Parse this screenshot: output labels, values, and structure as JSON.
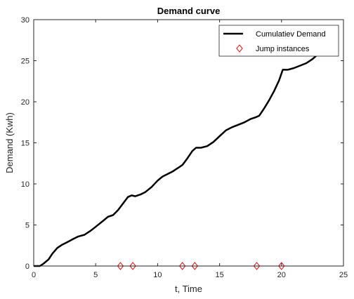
{
  "chart_data": {
    "type": "line",
    "title": "Demand curve",
    "xlabel": "t, Time",
    "ylabel": "Demand (Kwh)",
    "xlim": [
      0,
      25
    ],
    "ylim": [
      0,
      30
    ],
    "xticks": [
      0,
      5,
      10,
      15,
      20,
      25
    ],
    "yticks": [
      0,
      5,
      10,
      15,
      20,
      25,
      30
    ],
    "grid": false,
    "legend_position": "top-right",
    "series": [
      {
        "name": "Cumulatiev Demand",
        "kind": "line",
        "color": "#000000",
        "x": [
          0,
          0.5,
          0.8,
          1.2,
          1.5,
          1.9,
          2.3,
          2.7,
          3.2,
          3.6,
          4.1,
          4.6,
          5.1,
          5.6,
          6.0,
          6.4,
          6.8,
          7.2,
          7.6,
          7.9,
          8.2,
          8.6,
          9.0,
          9.5,
          10.0,
          10.4,
          10.8,
          11.2,
          11.6,
          12.0,
          12.4,
          12.8,
          13.1,
          13.5,
          14.0,
          14.5,
          15.0,
          15.5,
          16.0,
          16.5,
          17.0,
          17.5,
          17.9,
          18.2,
          18.6,
          19.0,
          19.4,
          19.8,
          20.1,
          20.5,
          21.0,
          21.5,
          22.0,
          22.5,
          22.8
        ],
        "y": [
          0,
          0,
          0.3,
          0.8,
          1.5,
          2.2,
          2.6,
          2.9,
          3.3,
          3.6,
          3.8,
          4.3,
          4.9,
          5.5,
          6.0,
          6.2,
          6.8,
          7.6,
          8.4,
          8.6,
          8.5,
          8.7,
          9.0,
          9.6,
          10.4,
          10.9,
          11.2,
          11.5,
          11.9,
          12.3,
          13.1,
          14.0,
          14.4,
          14.4,
          14.6,
          15.1,
          15.8,
          16.5,
          16.9,
          17.2,
          17.5,
          17.9,
          18.1,
          18.3,
          19.2,
          20.2,
          21.3,
          22.6,
          23.9,
          23.9,
          24.1,
          24.4,
          24.7,
          25.2,
          25.6
        ]
      },
      {
        "name": "Jump instances",
        "kind": "marker",
        "marker": "diamond",
        "color": "#e00000",
        "x": [
          7,
          8,
          12,
          13,
          18,
          20
        ],
        "y": [
          0,
          0,
          0,
          0,
          0,
          0
        ]
      }
    ]
  }
}
